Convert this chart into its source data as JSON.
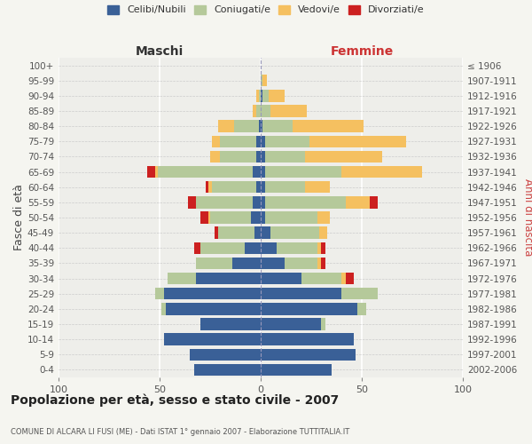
{
  "age_groups": [
    "0-4",
    "5-9",
    "10-14",
    "15-19",
    "20-24",
    "25-29",
    "30-34",
    "35-39",
    "40-44",
    "45-49",
    "50-54",
    "55-59",
    "60-64",
    "65-69",
    "70-74",
    "75-79",
    "80-84",
    "85-89",
    "90-94",
    "95-99",
    "100+"
  ],
  "birth_years": [
    "2002-2006",
    "1997-2001",
    "1992-1996",
    "1987-1991",
    "1982-1986",
    "1977-1981",
    "1972-1976",
    "1967-1971",
    "1962-1966",
    "1957-1961",
    "1952-1956",
    "1947-1951",
    "1942-1946",
    "1937-1941",
    "1932-1936",
    "1927-1931",
    "1922-1926",
    "1917-1921",
    "1912-1916",
    "1907-1911",
    "≤ 1906"
  ],
  "male": {
    "celibi": [
      33,
      35,
      48,
      30,
      47,
      48,
      32,
      14,
      8,
      3,
      5,
      4,
      2,
      4,
      2,
      2,
      1,
      0,
      0,
      0,
      0
    ],
    "coniugati": [
      0,
      0,
      0,
      0,
      2,
      4,
      14,
      18,
      22,
      18,
      20,
      28,
      22,
      47,
      18,
      18,
      12,
      2,
      1,
      0,
      0
    ],
    "vedovi": [
      0,
      0,
      0,
      0,
      0,
      0,
      0,
      0,
      0,
      0,
      1,
      0,
      2,
      1,
      5,
      4,
      8,
      2,
      1,
      0,
      0
    ],
    "divorziati": [
      0,
      0,
      0,
      0,
      0,
      0,
      0,
      0,
      3,
      2,
      4,
      4,
      1,
      4,
      0,
      0,
      0,
      0,
      0,
      0,
      0
    ]
  },
  "female": {
    "nubili": [
      35,
      47,
      46,
      30,
      48,
      40,
      20,
      12,
      8,
      5,
      2,
      2,
      2,
      2,
      2,
      2,
      1,
      0,
      1,
      0,
      0
    ],
    "coniugate": [
      0,
      0,
      0,
      2,
      4,
      18,
      20,
      16,
      20,
      24,
      26,
      40,
      20,
      38,
      20,
      22,
      15,
      5,
      3,
      1,
      0
    ],
    "vedove": [
      0,
      0,
      0,
      0,
      0,
      0,
      2,
      2,
      2,
      4,
      6,
      12,
      12,
      40,
      38,
      48,
      35,
      18,
      8,
      2,
      0
    ],
    "divorziate": [
      0,
      0,
      0,
      0,
      0,
      0,
      4,
      2,
      2,
      0,
      0,
      4,
      0,
      0,
      0,
      0,
      0,
      0,
      0,
      0,
      0
    ]
  },
  "colors": {
    "celibi_nubili": "#3a6097",
    "coniugati": "#b5c99a",
    "vedovi": "#f5c060",
    "divorziati": "#cc2020"
  },
  "xlim": 100,
  "title": "Popolazione per età, sesso e stato civile - 2007",
  "subtitle": "COMUNE DI ALCARA LI FUSI (ME) - Dati ISTAT 1° gennaio 2007 - Elaborazione TUTTITALIA.IT",
  "ylabel_left": "Fasce di età",
  "ylabel_right": "Anni di nascita",
  "xlabel_male": "Maschi",
  "xlabel_female": "Femmine",
  "bg_color": "#f5f5f0",
  "plot_bg": "#eeeeea"
}
